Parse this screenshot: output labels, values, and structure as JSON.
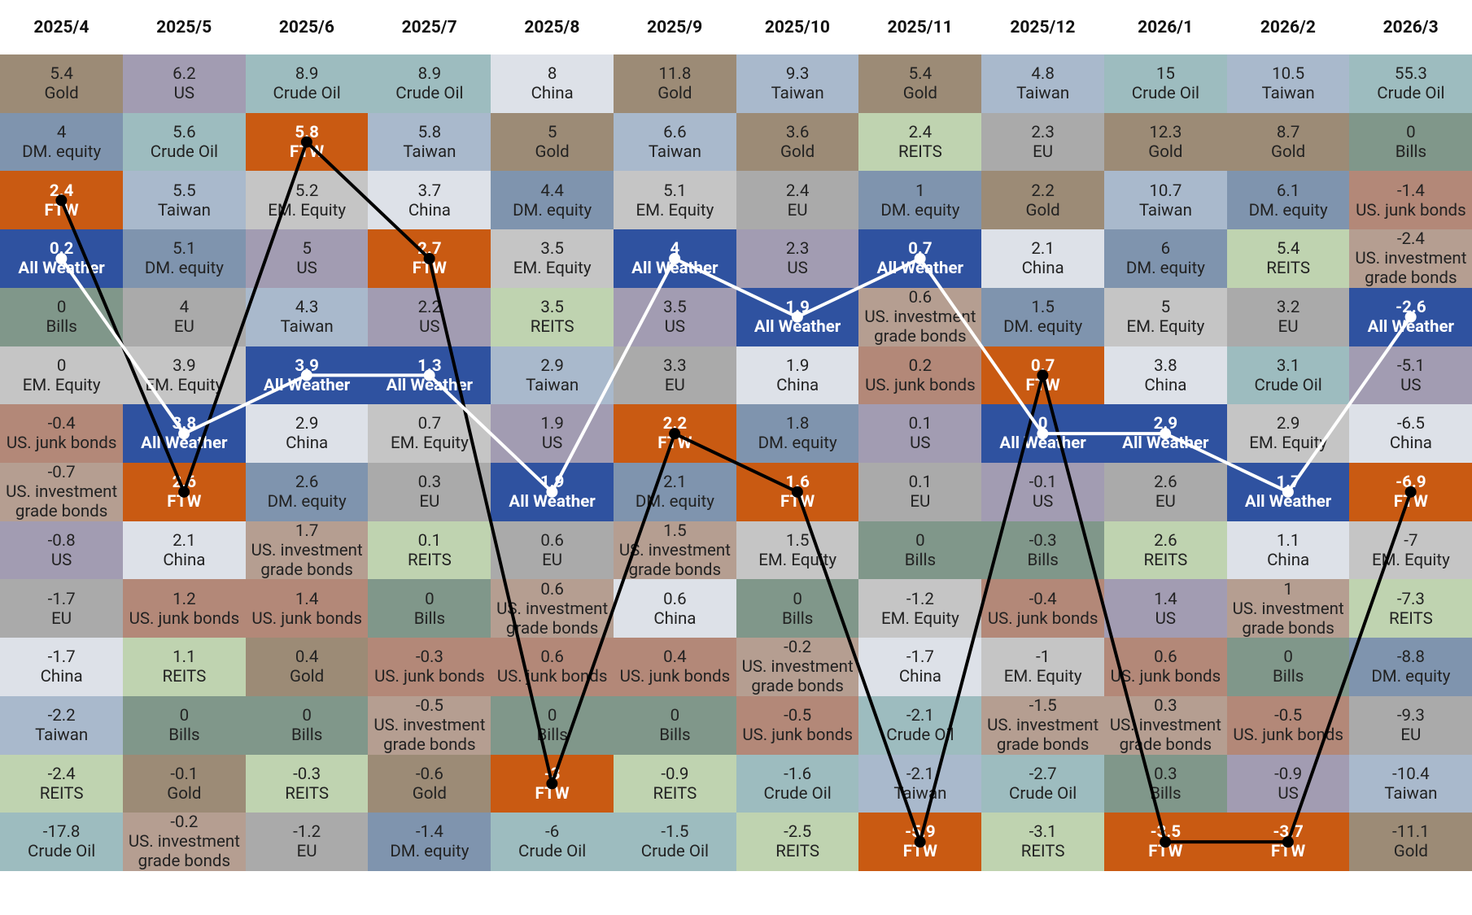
{
  "chart_data": {
    "type": "ranking-table",
    "asset_colors": {
      "Gold": "#9c8b76",
      "US": "#a29cb2",
      "Crude Oil": "#9dbcbf",
      "China": "#dde1e8",
      "Taiwan": "#a9b9cc",
      "DM. equity": "#7f94ae",
      "FTW": "#c95a12",
      "REITS": "#bfd3b0",
      "EU": "#aaaaaa",
      "All Weather": "#2f52a0",
      "Bills": "#80978a",
      "EM. Equity": "#c5c5c5",
      "US. junk bonds": "#b38878",
      "US. investment grade bonds": "#b59e91"
    },
    "highlight": [
      {
        "asset": "All Weather",
        "color": "#ffffff"
      },
      {
        "asset": "FTW",
        "color": "#000000"
      }
    ],
    "columns": [
      {
        "period": "2025/4",
        "cells": [
          {
            "value": 5.4,
            "asset": "Gold"
          },
          {
            "value": 4,
            "asset": "DM. equity"
          },
          {
            "value": 2.4,
            "asset": "FTW"
          },
          {
            "value": 0.2,
            "asset": "All Weather"
          },
          {
            "value": 0,
            "asset": "Bills"
          },
          {
            "value": 0,
            "asset": "EM. Equity"
          },
          {
            "value": -0.4,
            "asset": "US. junk bonds"
          },
          {
            "value": -0.7,
            "asset": "US. investment grade bonds"
          },
          {
            "value": -0.8,
            "asset": "US"
          },
          {
            "value": -1.7,
            "asset": "EU"
          },
          {
            "value": -1.7,
            "asset": "China"
          },
          {
            "value": -2.2,
            "asset": "Taiwan"
          },
          {
            "value": -2.4,
            "asset": "REITS"
          },
          {
            "value": -17.8,
            "asset": "Crude Oil"
          }
        ]
      },
      {
        "period": "2025/5",
        "cells": [
          {
            "value": 6.2,
            "asset": "US"
          },
          {
            "value": 5.6,
            "asset": "Crude Oil"
          },
          {
            "value": 5.5,
            "asset": "Taiwan"
          },
          {
            "value": 5.1,
            "asset": "DM. equity"
          },
          {
            "value": 4,
            "asset": "EU"
          },
          {
            "value": 3.9,
            "asset": "EM. Equity"
          },
          {
            "value": 3.8,
            "asset": "All Weather"
          },
          {
            "value": 2.6,
            "asset": "FTW"
          },
          {
            "value": 2.1,
            "asset": "China"
          },
          {
            "value": 1.2,
            "asset": "US. junk bonds"
          },
          {
            "value": 1.1,
            "asset": "REITS"
          },
          {
            "value": 0,
            "asset": "Bills"
          },
          {
            "value": -0.1,
            "asset": "Gold"
          },
          {
            "value": -0.2,
            "asset": "US. investment grade bonds"
          }
        ]
      },
      {
        "period": "2025/6",
        "cells": [
          {
            "value": 8.9,
            "asset": "Crude Oil"
          },
          {
            "value": 5.8,
            "asset": "FTW"
          },
          {
            "value": 5.2,
            "asset": "EM. Equity"
          },
          {
            "value": 5,
            "asset": "US"
          },
          {
            "value": 4.3,
            "asset": "Taiwan"
          },
          {
            "value": 3.9,
            "asset": "All Weather"
          },
          {
            "value": 2.9,
            "asset": "China"
          },
          {
            "value": 2.6,
            "asset": "DM. equity"
          },
          {
            "value": 1.7,
            "asset": "US. investment grade bonds"
          },
          {
            "value": 1.4,
            "asset": "US. junk bonds"
          },
          {
            "value": 0.4,
            "asset": "Gold"
          },
          {
            "value": 0,
            "asset": "Bills"
          },
          {
            "value": -0.3,
            "asset": "REITS"
          },
          {
            "value": -1.2,
            "asset": "EU"
          }
        ]
      },
      {
        "period": "2025/7",
        "cells": [
          {
            "value": 8.9,
            "asset": "Crude Oil"
          },
          {
            "value": 5.8,
            "asset": "Taiwan"
          },
          {
            "value": 3.7,
            "asset": "China"
          },
          {
            "value": 2.7,
            "asset": "FTW"
          },
          {
            "value": 2.2,
            "asset": "US"
          },
          {
            "value": 1.3,
            "asset": "All Weather"
          },
          {
            "value": 0.7,
            "asset": "EM. Equity"
          },
          {
            "value": 0.3,
            "asset": "EU"
          },
          {
            "value": 0.1,
            "asset": "REITS"
          },
          {
            "value": 0,
            "asset": "Bills"
          },
          {
            "value": -0.3,
            "asset": "US. junk bonds"
          },
          {
            "value": -0.5,
            "asset": "US. investment grade bonds"
          },
          {
            "value": -0.6,
            "asset": "Gold"
          },
          {
            "value": -1.4,
            "asset": "DM. equity"
          }
        ]
      },
      {
        "period": "2025/8",
        "cells": [
          {
            "value": 8,
            "asset": "China"
          },
          {
            "value": 5,
            "asset": "Gold"
          },
          {
            "value": 4.4,
            "asset": "DM. equity"
          },
          {
            "value": 3.5,
            "asset": "EM. Equity"
          },
          {
            "value": 3.5,
            "asset": "REITS"
          },
          {
            "value": 2.9,
            "asset": "Taiwan"
          },
          {
            "value": 1.9,
            "asset": "US"
          },
          {
            "value": 1.9,
            "asset": "All Weather"
          },
          {
            "value": 0.6,
            "asset": "EU"
          },
          {
            "value": 0.6,
            "asset": "US. investment grade bonds"
          },
          {
            "value": 0.6,
            "asset": "US. junk bonds"
          },
          {
            "value": 0,
            "asset": "Bills"
          },
          {
            "value": -3,
            "asset": "FTW"
          },
          {
            "value": -6,
            "asset": "Crude Oil"
          }
        ]
      },
      {
        "period": "2025/9",
        "cells": [
          {
            "value": 11.8,
            "asset": "Gold"
          },
          {
            "value": 6.6,
            "asset": "Taiwan"
          },
          {
            "value": 5.1,
            "asset": "EM. Equity"
          },
          {
            "value": 4,
            "asset": "All Weather"
          },
          {
            "value": 3.5,
            "asset": "US"
          },
          {
            "value": 3.3,
            "asset": "EU"
          },
          {
            "value": 2.2,
            "asset": "FTW"
          },
          {
            "value": 2.1,
            "asset": "DM. equity"
          },
          {
            "value": 1.5,
            "asset": "US. investment grade bonds"
          },
          {
            "value": 0.6,
            "asset": "China"
          },
          {
            "value": 0.4,
            "asset": "US. junk bonds"
          },
          {
            "value": 0,
            "asset": "Bills"
          },
          {
            "value": -0.9,
            "asset": "REITS"
          },
          {
            "value": -1.5,
            "asset": "Crude Oil"
          }
        ]
      },
      {
        "period": "2025/10",
        "cells": [
          {
            "value": 9.3,
            "asset": "Taiwan"
          },
          {
            "value": 3.6,
            "asset": "Gold"
          },
          {
            "value": 2.4,
            "asset": "EU"
          },
          {
            "value": 2.3,
            "asset": "US"
          },
          {
            "value": 1.9,
            "asset": "All Weather"
          },
          {
            "value": 1.9,
            "asset": "China"
          },
          {
            "value": 1.8,
            "asset": "DM. equity"
          },
          {
            "value": 1.6,
            "asset": "FTW"
          },
          {
            "value": 1.5,
            "asset": "EM. Equity"
          },
          {
            "value": 0,
            "asset": "Bills"
          },
          {
            "value": -0.2,
            "asset": "US. investment grade bonds"
          },
          {
            "value": -0.5,
            "asset": "US. junk bonds"
          },
          {
            "value": -1.6,
            "asset": "Crude Oil"
          },
          {
            "value": -2.5,
            "asset": "REITS"
          }
        ]
      },
      {
        "period": "2025/11",
        "cells": [
          {
            "value": 5.4,
            "asset": "Gold"
          },
          {
            "value": 2.4,
            "asset": "REITS"
          },
          {
            "value": 1,
            "asset": "DM. equity"
          },
          {
            "value": 0.7,
            "asset": "All Weather"
          },
          {
            "value": 0.6,
            "asset": "US. investment grade bonds"
          },
          {
            "value": 0.2,
            "asset": "US. junk bonds"
          },
          {
            "value": 0.1,
            "asset": "US"
          },
          {
            "value": 0.1,
            "asset": "EU"
          },
          {
            "value": 0,
            "asset": "Bills"
          },
          {
            "value": -1.2,
            "asset": "EM. Equity"
          },
          {
            "value": -1.7,
            "asset": "China"
          },
          {
            "value": -2.1,
            "asset": "Crude Oil"
          },
          {
            "value": -2.1,
            "asset": "Taiwan"
          },
          {
            "value": -5.9,
            "asset": "FTW"
          }
        ]
      },
      {
        "period": "2025/12",
        "cells": [
          {
            "value": 4.8,
            "asset": "Taiwan"
          },
          {
            "value": 2.3,
            "asset": "EU"
          },
          {
            "value": 2.2,
            "asset": "Gold"
          },
          {
            "value": 2.1,
            "asset": "China"
          },
          {
            "value": 1.5,
            "asset": "DM. equity"
          },
          {
            "value": 0.7,
            "asset": "FTW"
          },
          {
            "value": 0,
            "asset": "All Weather"
          },
          {
            "value": -0.1,
            "asset": "US"
          },
          {
            "value": -0.3,
            "asset": "Bills"
          },
          {
            "value": -0.4,
            "asset": "US. junk bonds"
          },
          {
            "value": -1,
            "asset": "EM. Equity"
          },
          {
            "value": -1.5,
            "asset": "US. investment grade bonds"
          },
          {
            "value": -2.7,
            "asset": "Crude Oil"
          },
          {
            "value": -3.1,
            "asset": "REITS"
          }
        ]
      },
      {
        "period": "2026/1",
        "cells": [
          {
            "value": 15,
            "asset": "Crude Oil"
          },
          {
            "value": 12.3,
            "asset": "Gold"
          },
          {
            "value": 10.7,
            "asset": "Taiwan"
          },
          {
            "value": 6,
            "asset": "DM. equity"
          },
          {
            "value": 5,
            "asset": "EM. Equity"
          },
          {
            "value": 3.8,
            "asset": "China"
          },
          {
            "value": 2.9,
            "asset": "All Weather"
          },
          {
            "value": 2.6,
            "asset": "EU"
          },
          {
            "value": 2.6,
            "asset": "REITS"
          },
          {
            "value": 1.4,
            "asset": "US"
          },
          {
            "value": 0.6,
            "asset": "US. junk bonds"
          },
          {
            "value": 0.3,
            "asset": "US. investment grade bonds"
          },
          {
            "value": 0.3,
            "asset": "Bills"
          },
          {
            "value": -3.5,
            "asset": "FTW"
          }
        ]
      },
      {
        "period": "2026/2",
        "cells": [
          {
            "value": 10.5,
            "asset": "Taiwan"
          },
          {
            "value": 8.7,
            "asset": "Gold"
          },
          {
            "value": 6.1,
            "asset": "DM. equity"
          },
          {
            "value": 5.4,
            "asset": "REITS"
          },
          {
            "value": 3.2,
            "asset": "EU"
          },
          {
            "value": 3.1,
            "asset": "Crude Oil"
          },
          {
            "value": 2.9,
            "asset": "EM. Equity"
          },
          {
            "value": 1.7,
            "asset": "All Weather"
          },
          {
            "value": 1.1,
            "asset": "China"
          },
          {
            "value": 1,
            "asset": "US. investment grade bonds"
          },
          {
            "value": 0,
            "asset": "Bills"
          },
          {
            "value": -0.5,
            "asset": "US. junk bonds"
          },
          {
            "value": -0.9,
            "asset": "US"
          },
          {
            "value": -3.7,
            "asset": "FTW"
          }
        ]
      },
      {
        "period": "2026/3",
        "cells": [
          {
            "value": 55.3,
            "asset": "Crude Oil"
          },
          {
            "value": 0,
            "asset": "Bills"
          },
          {
            "value": -1.4,
            "asset": "US. junk bonds"
          },
          {
            "value": -2.4,
            "asset": "US. investment grade bonds"
          },
          {
            "value": -2.6,
            "asset": "All Weather"
          },
          {
            "value": -5.1,
            "asset": "US"
          },
          {
            "value": -6.5,
            "asset": "China"
          },
          {
            "value": -6.9,
            "asset": "FTW"
          },
          {
            "value": -7,
            "asset": "EM. Equity"
          },
          {
            "value": -7.3,
            "asset": "REITS"
          },
          {
            "value": -8.8,
            "asset": "DM. equity"
          },
          {
            "value": -9.3,
            "asset": "EU"
          },
          {
            "value": -10.4,
            "asset": "Taiwan"
          },
          {
            "value": -11.1,
            "asset": "Gold"
          }
        ]
      }
    ]
  }
}
